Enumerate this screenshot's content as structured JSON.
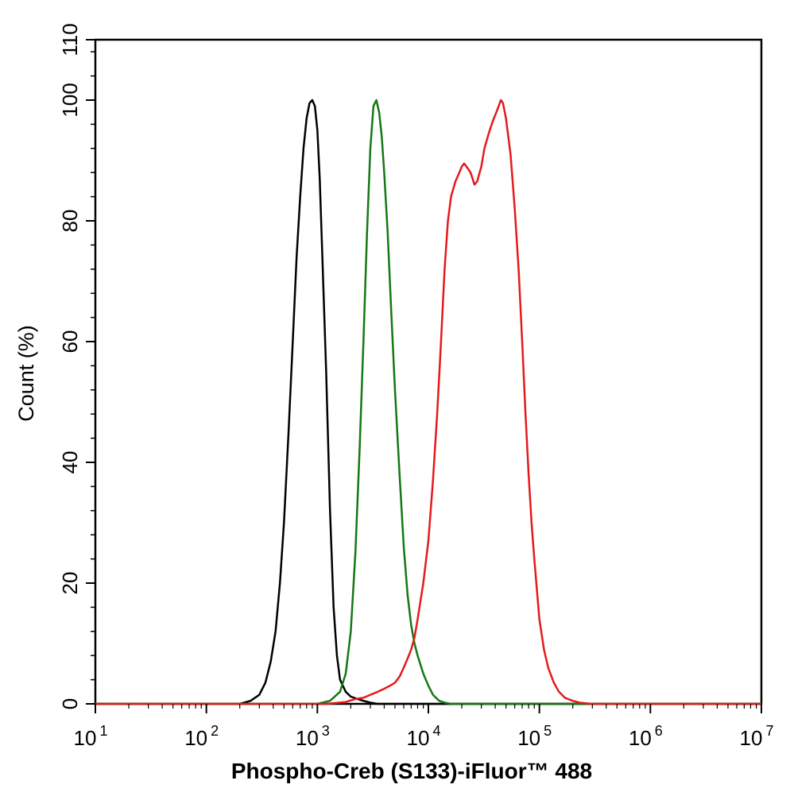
{
  "chart_data": {
    "type": "line",
    "title": "",
    "xlabel": "Phospho-Creb (S133)-iFluor™ 488",
    "ylabel": "Count  (%)",
    "x_scale": "log",
    "xlim": [
      10,
      10000000
    ],
    "ylim": [
      0,
      110
    ],
    "x_ticks": [
      {
        "base": "10",
        "exp": "1"
      },
      {
        "base": "10",
        "exp": "2"
      },
      {
        "base": "10",
        "exp": "3"
      },
      {
        "base": "10",
        "exp": "4"
      },
      {
        "base": "10",
        "exp": "5"
      },
      {
        "base": "10",
        "exp": "6"
      },
      {
        "base": "10",
        "exp": "7"
      }
    ],
    "y_ticks": [
      "0",
      "20",
      "40",
      "60",
      "80",
      "100",
      "110"
    ],
    "grid": false,
    "legend": "none",
    "series": [
      {
        "color": "#000000",
        "x": [
          200,
          250,
          300,
          340,
          380,
          420,
          460,
          500,
          550,
          600,
          650,
          700,
          750,
          800,
          850,
          900,
          950,
          1000,
          1050,
          1100,
          1200,
          1300,
          1400,
          1500,
          1600,
          1800,
          2000,
          2300,
          2600,
          3000,
          3500
        ],
        "y": [
          0,
          0.5,
          1.5,
          3.5,
          7,
          12,
          20,
          30,
          45,
          60,
          74,
          84,
          92,
          97,
          99.5,
          100,
          99,
          95,
          87,
          76,
          55,
          32,
          16,
          8,
          4,
          2,
          1.2,
          0.8,
          0.5,
          0.2,
          0
        ]
      },
      {
        "color": "#147814",
        "x": [
          1000,
          1300,
          1600,
          1800,
          2000,
          2200,
          2400,
          2600,
          2800,
          3000,
          3200,
          3400,
          3600,
          3800,
          4000,
          4300,
          4600,
          5000,
          5500,
          6000,
          6500,
          7000,
          7500,
          8000,
          9000,
          10000,
          11000,
          12500,
          14000,
          16000
        ],
        "y": [
          0,
          0.5,
          2,
          5,
          12,
          25,
          42,
          60,
          78,
          92,
          99,
          100,
          98,
          94,
          88,
          78,
          66,
          52,
          38,
          26,
          18,
          13,
          10,
          8,
          5,
          3,
          1.5,
          0.5,
          0.2,
          0
        ]
      },
      {
        "color": "#e41a1c",
        "x": [
          1200,
          1800,
          2200,
          2600,
          3000,
          3500,
          4000,
          4500,
          5000,
          5500,
          6000,
          6500,
          7000,
          7500,
          8000,
          9000,
          10000,
          11000,
          12000,
          13000,
          14000,
          15000,
          16000,
          17500,
          19000,
          20000,
          21000,
          22000,
          23000,
          24000,
          25000,
          26000,
          27500,
          30000,
          32000,
          35000,
          38000,
          41000,
          43000,
          45000,
          47000,
          50000,
          55000,
          60000,
          65000,
          70000,
          75000,
          80000,
          85000,
          90000,
          100000,
          110000,
          120000,
          135000,
          150000,
          170000,
          200000,
          230000,
          260000,
          300000
        ],
        "y": [
          0,
          0.3,
          0.8,
          1,
          1.5,
          2,
          2.5,
          3,
          3.5,
          4.5,
          6,
          7.5,
          9,
          11,
          14,
          20,
          27,
          37,
          48,
          60,
          72,
          80,
          84,
          86.5,
          88,
          89,
          89.5,
          89,
          88.5,
          88,
          87,
          86,
          86.5,
          89,
          92,
          94.5,
          96.5,
          98,
          99,
          100,
          99.5,
          97,
          91,
          82,
          72,
          60,
          48,
          38,
          30,
          24,
          14,
          9,
          6,
          3.5,
          2,
          1,
          0.5,
          0.2,
          0.1,
          0
        ]
      }
    ]
  }
}
